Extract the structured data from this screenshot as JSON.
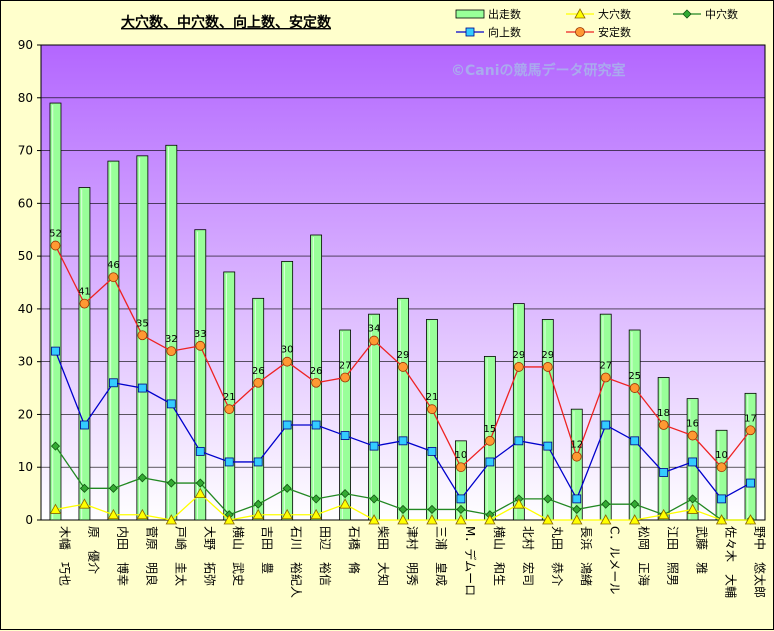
{
  "chart_data": {
    "type": "bar",
    "title": "大穴数、中穴数、向上数、安定数",
    "watermark": "©Caniの競馬データ研究室",
    "ylim": [
      0,
      90
    ],
    "yticks": [
      0,
      10,
      20,
      30,
      40,
      50,
      60,
      70,
      80,
      90
    ],
    "legend_position": "top",
    "categories": [
      "木幡　巧也",
      "原　優介",
      "内田　博幸",
      "菅原　明良",
      "戸崎　圭太",
      "大野　拓弥",
      "横山　武史",
      "吉田　豊",
      "石川　裕紀人",
      "田辺　裕信",
      "石橋　脩",
      "柴田　大知",
      "津村　明秀",
      "三浦　皇成",
      "M．デムーロ",
      "横山　和生",
      "北村　宏司",
      "丸田　恭介",
      "長浜　鴻緒",
      "C．ルメール",
      "松岡　正海",
      "江田　照男",
      "武藤　雅",
      "佐々木　大輔",
      "野中　悠太郎"
    ],
    "series": [
      {
        "name": "出走数",
        "type": "bar",
        "color": "#99ff99",
        "values": [
          79,
          63,
          68,
          69,
          71,
          55,
          47,
          42,
          49,
          54,
          36,
          39,
          42,
          38,
          15,
          31,
          41,
          38,
          21,
          39,
          36,
          27,
          23,
          17,
          24
        ]
      },
      {
        "name": "大穴数",
        "type": "line",
        "color": "#ffff00",
        "values": [
          2,
          3,
          1,
          1,
          0,
          5,
          0,
          1,
          1,
          1,
          3,
          0,
          0,
          0,
          0,
          0,
          3,
          0,
          0,
          0,
          0,
          1,
          2,
          0,
          0
        ]
      },
      {
        "name": "中穴数",
        "type": "line",
        "color": "#228822",
        "values": [
          14,
          6,
          6,
          8,
          7,
          7,
          1,
          3,
          6,
          4,
          5,
          4,
          2,
          2,
          2,
          1,
          4,
          4,
          2,
          3,
          3,
          1,
          4,
          0,
          0
        ]
      },
      {
        "name": "向上数",
        "type": "line",
        "color": "#0000cc",
        "values": [
          32,
          18,
          26,
          25,
          22,
          13,
          11,
          11,
          18,
          18,
          16,
          14,
          15,
          13,
          4,
          11,
          15,
          14,
          4,
          18,
          15,
          9,
          11,
          4,
          7
        ]
      },
      {
        "name": "安定数",
        "type": "line",
        "color": "#ee2222",
        "values": [
          52,
          41,
          46,
          35,
          32,
          33,
          21,
          26,
          30,
          26,
          27,
          34,
          29,
          21,
          10,
          15,
          29,
          29,
          12,
          27,
          25,
          18,
          16,
          10,
          17
        ]
      }
    ],
    "data_labels_series": "安定数"
  }
}
